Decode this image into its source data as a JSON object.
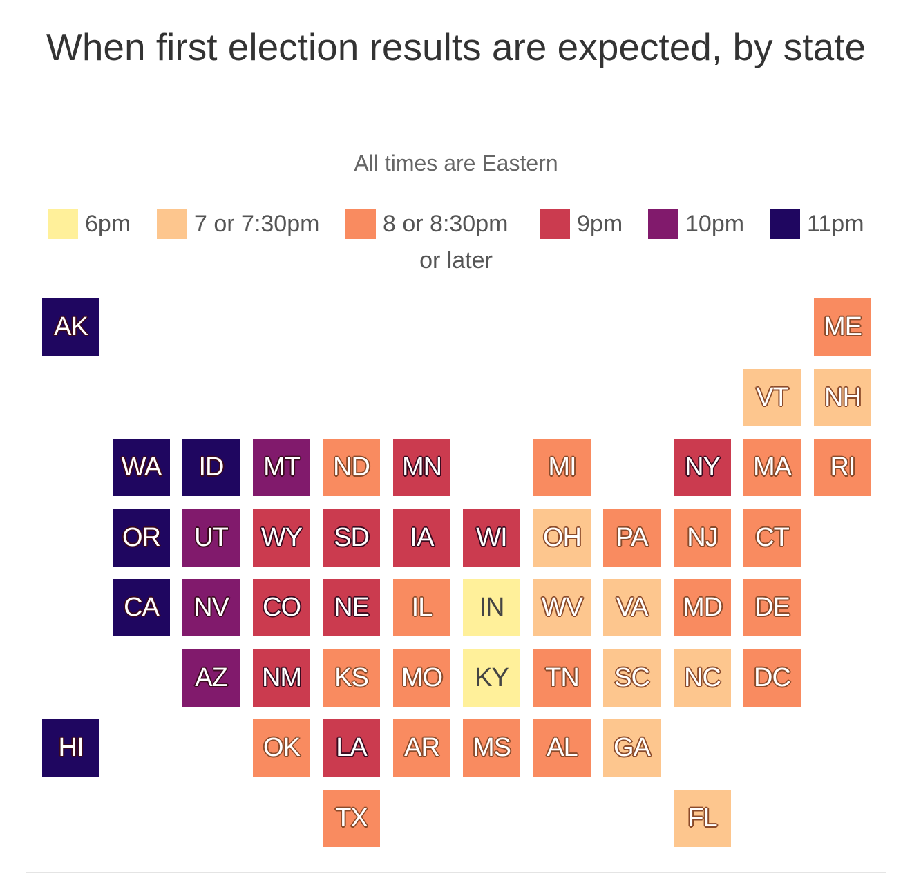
{
  "title": "When first election results are expected, by state",
  "subtitle": "All times are Eastern",
  "legend": {
    "items": [
      {
        "key": "6pm",
        "label": "6pm",
        "color": "#fff09a"
      },
      {
        "key": "7",
        "label": "7 or 7:30pm",
        "color": "#fdc68e"
      },
      {
        "key": "8",
        "label": "8 or 8:30pm",
        "color": "#f98b60"
      },
      {
        "key": "9",
        "label": "9pm",
        "color": "#cb3b4f"
      },
      {
        "key": "10",
        "label": "10pm",
        "color": "#811a6c"
      },
      {
        "key": "11",
        "label": "11pm",
        "color": "#1f0660"
      }
    ],
    "wrap_label": "or later"
  },
  "states": [
    {
      "abbr": "AK",
      "time": "11"
    },
    {
      "abbr": "ME",
      "time": "8"
    },
    {
      "abbr": "VT",
      "time": "7"
    },
    {
      "abbr": "NH",
      "time": "7"
    },
    {
      "abbr": "WA",
      "time": "11"
    },
    {
      "abbr": "ID",
      "time": "11"
    },
    {
      "abbr": "MT",
      "time": "10"
    },
    {
      "abbr": "ND",
      "time": "8"
    },
    {
      "abbr": "MN",
      "time": "9"
    },
    {
      "abbr": "MI",
      "time": "8"
    },
    {
      "abbr": "NY",
      "time": "9"
    },
    {
      "abbr": "MA",
      "time": "8"
    },
    {
      "abbr": "RI",
      "time": "8"
    },
    {
      "abbr": "OR",
      "time": "11"
    },
    {
      "abbr": "UT",
      "time": "10"
    },
    {
      "abbr": "WY",
      "time": "9"
    },
    {
      "abbr": "SD",
      "time": "9"
    },
    {
      "abbr": "IA",
      "time": "9"
    },
    {
      "abbr": "WI",
      "time": "9"
    },
    {
      "abbr": "OH",
      "time": "7"
    },
    {
      "abbr": "PA",
      "time": "8"
    },
    {
      "abbr": "NJ",
      "time": "8"
    },
    {
      "abbr": "CT",
      "time": "8"
    },
    {
      "abbr": "CA",
      "time": "11"
    },
    {
      "abbr": "NV",
      "time": "10"
    },
    {
      "abbr": "CO",
      "time": "9"
    },
    {
      "abbr": "NE",
      "time": "9"
    },
    {
      "abbr": "IL",
      "time": "8"
    },
    {
      "abbr": "IN",
      "time": "6pm"
    },
    {
      "abbr": "WV",
      "time": "7"
    },
    {
      "abbr": "VA",
      "time": "7"
    },
    {
      "abbr": "MD",
      "time": "8"
    },
    {
      "abbr": "DE",
      "time": "8"
    },
    {
      "abbr": "AZ",
      "time": "10"
    },
    {
      "abbr": "NM",
      "time": "9"
    },
    {
      "abbr": "KS",
      "time": "8"
    },
    {
      "abbr": "MO",
      "time": "8"
    },
    {
      "abbr": "KY",
      "time": "6pm"
    },
    {
      "abbr": "TN",
      "time": "8"
    },
    {
      "abbr": "SC",
      "time": "7"
    },
    {
      "abbr": "NC",
      "time": "7"
    },
    {
      "abbr": "DC",
      "time": "8"
    },
    {
      "abbr": "HI",
      "time": "11"
    },
    {
      "abbr": "OK",
      "time": "8"
    },
    {
      "abbr": "LA",
      "time": "9"
    },
    {
      "abbr": "AR",
      "time": "8"
    },
    {
      "abbr": "MS",
      "time": "8"
    },
    {
      "abbr": "AL",
      "time": "8"
    },
    {
      "abbr": "GA",
      "time": "7"
    },
    {
      "abbr": "TX",
      "time": "8"
    },
    {
      "abbr": "FL",
      "time": "7"
    }
  ]
}
